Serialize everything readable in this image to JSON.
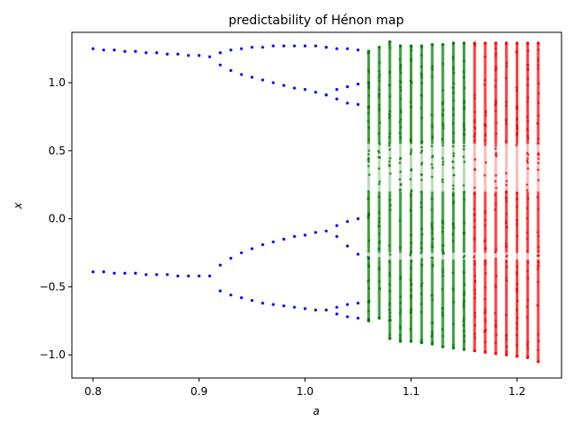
{
  "chart_data": {
    "type": "scatter",
    "title": "predictability of Hénon map",
    "xlabel": "a",
    "ylabel": "x",
    "xlim": [
      0.78,
      1.242
    ],
    "ylim": [
      -1.17,
      1.37
    ],
    "xticks": [
      0.8,
      0.9,
      1.0,
      1.1,
      1.2
    ],
    "xtick_labels": [
      "0.8",
      "0.9",
      "1.0",
      "1.1",
      "1.2"
    ],
    "yticks": [
      -1.0,
      -0.5,
      0.0,
      0.5,
      1.0
    ],
    "ytick_labels": [
      "−1.0",
      "−0.5",
      "0.0",
      "0.5",
      "1.0"
    ],
    "grid": false,
    "legend": "none",
    "colors": {
      "periodic": "#0000ff",
      "mixed": "#008000",
      "chaotic": "#ff0000"
    },
    "periodic_points": {
      "a": [
        0.8,
        0.81,
        0.82,
        0.83,
        0.84,
        0.85,
        0.86,
        0.87,
        0.88,
        0.89,
        0.9,
        0.91,
        0.92,
        0.93,
        0.94,
        0.95,
        0.96,
        0.97,
        0.98,
        0.99,
        1.0,
        1.01,
        1.02,
        1.03,
        1.04,
        1.05,
        1.06
      ],
      "x": [
        [
          1.25,
          -0.39
        ],
        [
          1.24,
          -0.39
        ],
        [
          1.24,
          -0.4
        ],
        [
          1.23,
          -0.4
        ],
        [
          1.23,
          -0.4
        ],
        [
          1.22,
          -0.41
        ],
        [
          1.22,
          -0.41
        ],
        [
          1.21,
          -0.41
        ],
        [
          1.21,
          -0.42
        ],
        [
          1.2,
          -0.42
        ],
        [
          1.2,
          -0.42
        ],
        [
          1.19,
          -0.42
        ],
        [
          1.22,
          1.13,
          -0.34,
          -0.53
        ],
        [
          1.24,
          1.09,
          -0.29,
          -0.56
        ],
        [
          1.25,
          1.06,
          -0.25,
          -0.58
        ],
        [
          1.26,
          1.04,
          -0.22,
          -0.6
        ],
        [
          1.26,
          1.02,
          -0.19,
          -0.62
        ],
        [
          1.27,
          1.0,
          -0.17,
          -0.63
        ],
        [
          1.27,
          0.98,
          -0.15,
          -0.64
        ],
        [
          1.27,
          0.96,
          -0.13,
          -0.65
        ],
        [
          1.27,
          0.95,
          -0.12,
          -0.66
        ],
        [
          1.27,
          0.93,
          -0.1,
          -0.67
        ],
        [
          1.26,
          0.91,
          1.26,
          0.91,
          -0.09,
          -0.67
        ],
        [
          1.25,
          0.95,
          0.88,
          -0.05,
          -0.13,
          -0.65,
          -0.7
        ],
        [
          1.25,
          0.97,
          0.85,
          -0.02,
          -0.2,
          -0.63,
          -0.72
        ],
        [
          1.24,
          0.99,
          0.84,
          0.0,
          -0.26,
          -0.62,
          -0.73
        ],
        [
          1.23,
          1.0,
          0.82,
          0.03,
          -0.29,
          -0.61,
          -0.74
        ]
      ]
    },
    "mixed_columns": [
      {
        "a": 1.06,
        "min": -0.75,
        "max": 1.23
      },
      {
        "a": 1.07,
        "min": -0.73,
        "max": 1.26
      },
      {
        "a": 1.08,
        "min": -0.88,
        "max": 1.3
      },
      {
        "a": 1.09,
        "min": -0.9,
        "max": 1.27
      },
      {
        "a": 1.1,
        "min": -0.9,
        "max": 1.27
      },
      {
        "a": 1.11,
        "min": -0.91,
        "max": 1.27
      },
      {
        "a": 1.12,
        "min": -0.92,
        "max": 1.28
      },
      {
        "a": 1.13,
        "min": -0.94,
        "max": 1.28
      },
      {
        "a": 1.14,
        "min": -0.95,
        "max": 1.29
      },
      {
        "a": 1.15,
        "min": -0.96,
        "max": 1.29
      }
    ],
    "chaotic_columns": [
      {
        "a": 1.16,
        "min": -0.97,
        "max": 1.29
      },
      {
        "a": 1.17,
        "min": -0.98,
        "max": 1.29
      },
      {
        "a": 1.18,
        "min": -0.99,
        "max": 1.29
      },
      {
        "a": 1.19,
        "min": -1.0,
        "max": 1.29
      },
      {
        "a": 1.2,
        "min": -1.01,
        "max": 1.29
      },
      {
        "a": 1.21,
        "min": -1.02,
        "max": 1.29
      },
      {
        "a": 1.22,
        "min": -1.05,
        "max": 1.29
      }
    ]
  }
}
